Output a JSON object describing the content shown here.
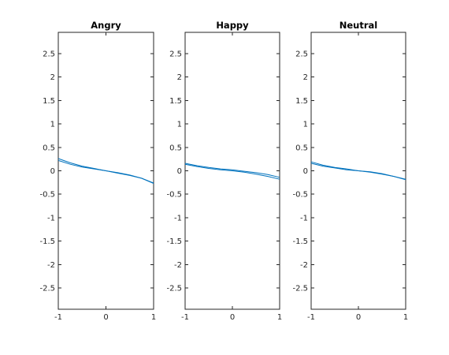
{
  "chart_data": [
    {
      "type": "line",
      "title": "Angry",
      "xlabel": "",
      "ylabel": "",
      "xlim": [
        -1,
        1
      ],
      "ylim": [
        -2.95,
        2.95
      ],
      "xticks": [
        "-1",
        "0",
        "1"
      ],
      "yticks": [
        "2.5",
        "2",
        "1.5",
        "1",
        "0.5",
        "0",
        "-0.5",
        "-1",
        "-1.5",
        "-2",
        "-2.5"
      ],
      "grid": false,
      "color": "#0072bd",
      "series": [
        {
          "x": [
            -1,
            -0.75,
            -0.5,
            -0.25,
            0,
            0.25,
            0.5,
            0.75,
            1
          ],
          "y": [
            0.26,
            0.17,
            0.1,
            0.05,
            0.0,
            -0.05,
            -0.1,
            -0.16,
            -0.26
          ]
        },
        {
          "x": [
            -1,
            -0.75,
            -0.5,
            -0.25,
            0,
            0.25,
            0.5,
            0.75,
            1
          ],
          "y": [
            0.22,
            0.14,
            0.08,
            0.04,
            0.0,
            -0.04,
            -0.09,
            -0.16,
            -0.27
          ]
        }
      ]
    },
    {
      "type": "line",
      "title": "Happy",
      "xlabel": "",
      "ylabel": "",
      "xlim": [
        -1,
        1
      ],
      "ylim": [
        -2.95,
        2.95
      ],
      "xticks": [
        "-1",
        "0",
        "1"
      ],
      "yticks": [
        "2.5",
        "2",
        "1.5",
        "1",
        "0.5",
        "0",
        "-0.5",
        "-1",
        "-1.5",
        "-2",
        "-2.5"
      ],
      "grid": false,
      "color": "#0072bd",
      "series": [
        {
          "x": [
            -1,
            -0.75,
            -0.5,
            -0.25,
            0,
            0.25,
            0.5,
            0.75,
            1
          ],
          "y": [
            0.16,
            0.11,
            0.07,
            0.04,
            0.02,
            -0.01,
            -0.04,
            -0.08,
            -0.14
          ]
        },
        {
          "x": [
            -1,
            -0.75,
            -0.5,
            -0.25,
            0,
            0.25,
            0.5,
            0.75,
            1
          ],
          "y": [
            0.14,
            0.09,
            0.05,
            0.02,
            0.0,
            -0.03,
            -0.07,
            -0.12,
            -0.18
          ]
        }
      ]
    },
    {
      "type": "line",
      "title": "Neutral",
      "xlabel": "",
      "ylabel": "",
      "xlim": [
        -1,
        1
      ],
      "ylim": [
        -2.95,
        2.95
      ],
      "xticks": [
        "-1",
        "0",
        "1"
      ],
      "yticks": [
        "2.5",
        "2",
        "1.5",
        "1",
        "0.5",
        "0",
        "-0.5",
        "-1",
        "-1.5",
        "-2",
        "-2.5"
      ],
      "grid": false,
      "color": "#0072bd",
      "series": [
        {
          "x": [
            -1,
            -0.75,
            -0.5,
            -0.25,
            0,
            0.25,
            0.5,
            0.75,
            1
          ],
          "y": [
            0.19,
            0.12,
            0.07,
            0.04,
            0.0,
            -0.03,
            -0.07,
            -0.12,
            -0.18
          ]
        },
        {
          "x": [
            -1,
            -0.75,
            -0.5,
            -0.25,
            0,
            0.25,
            0.5,
            0.75,
            1
          ],
          "y": [
            0.16,
            0.1,
            0.06,
            0.02,
            0.0,
            -0.02,
            -0.06,
            -0.12,
            -0.19
          ]
        }
      ]
    }
  ]
}
